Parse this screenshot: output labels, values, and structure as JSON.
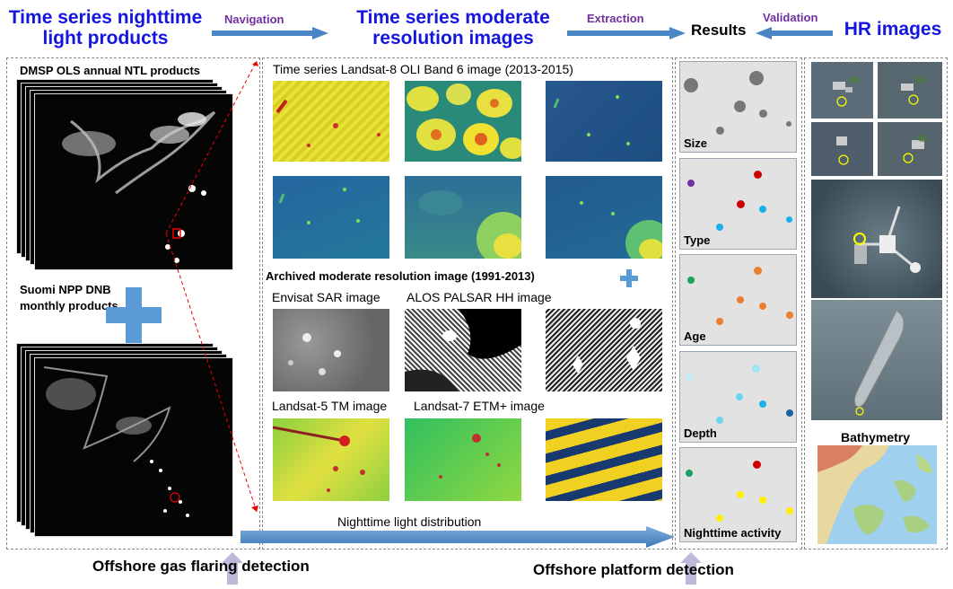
{
  "header": {
    "ntl_products": "Time series nighttime light products",
    "navigation": "Navigation",
    "moderate_images": "Time series moderate resolution images",
    "extraction": "Extraction",
    "results": "Results",
    "validation": "Validation",
    "hr_images": "HR images"
  },
  "left": {
    "dmsp": "DMSP OLS annual NTL products",
    "suomi": "Suomi NPP DNB monthly products"
  },
  "middle": {
    "landsat8": "Time series Landsat-8 OLI Band 6 image (2013-2015)",
    "archived": "Archived moderate resolution image (1991-2013)",
    "envisat": "Envisat SAR image",
    "alos": "ALOS PALSAR HH image",
    "landsat5": "Landsat-5 TM image",
    "landsat7": "Landsat-7 ETM+ image",
    "ntl_distribution": "Nighttime light distribution"
  },
  "results_panels": [
    "Size",
    "Type",
    "Age",
    "Depth",
    "Nighttime activity"
  ],
  "right": {
    "bathymetry": "Bathymetry"
  },
  "footer": {
    "gas_flaring": "Offshore gas flaring detection",
    "platform": "Offshore platform detection"
  },
  "colors": {
    "title_blue": "#1515e0",
    "label_purple": "#7030a0",
    "arrow_blue": "#4a86c5",
    "panel_gray": "#e2e2e2",
    "dot_red": "#cc0000",
    "dot_orange": "#ed7d31",
    "dot_cyan": "#1ab0e8",
    "dot_green": "#1ea060",
    "dot_yellow": "#ffee00",
    "dot_purple": "#7030a0"
  }
}
